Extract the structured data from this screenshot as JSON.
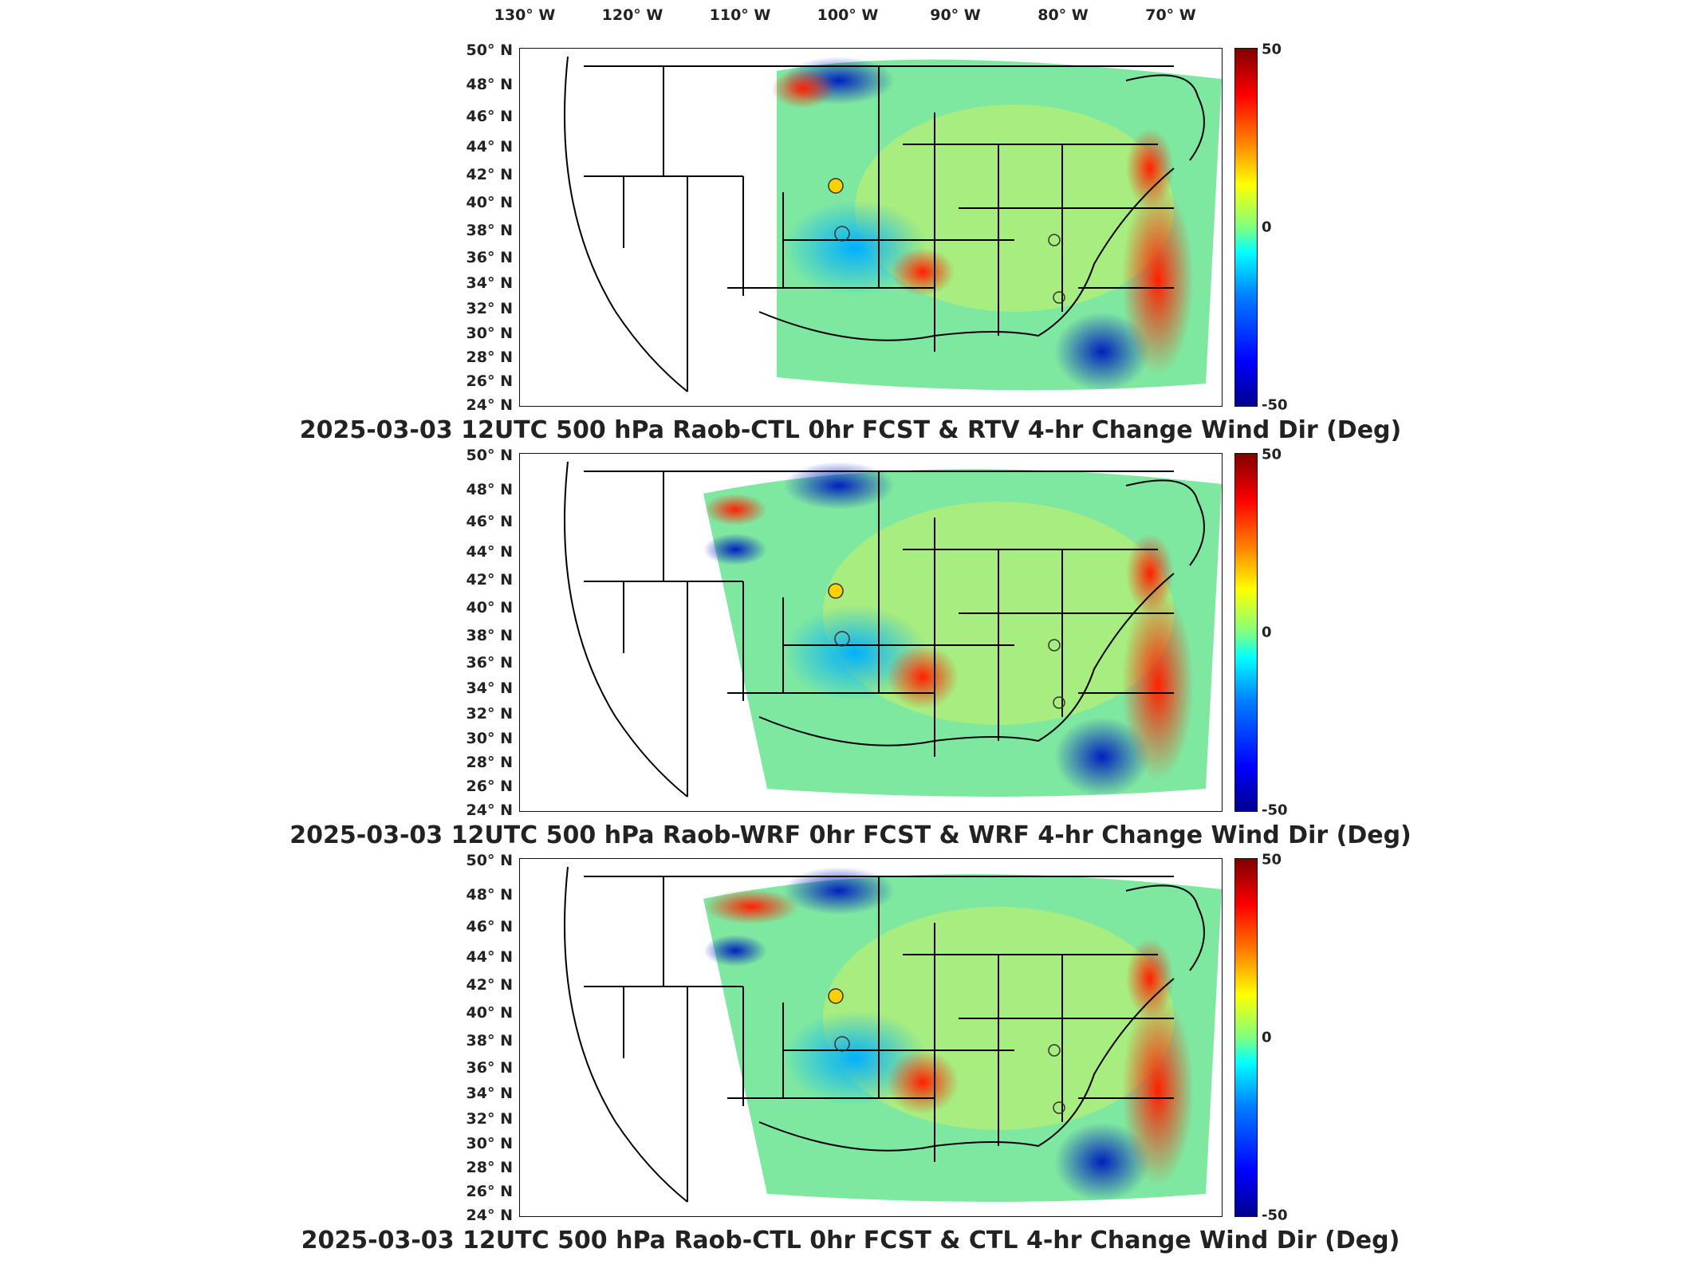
{
  "lon_labels": [
    "130° W",
    "120° W",
    "110° W",
    "100° W",
    "90° W",
    "80° W",
    "70° W"
  ],
  "lat_labels": [
    "50° N",
    "48° N",
    "46° N",
    "44° N",
    "42° N",
    "40° N",
    "38° N",
    "36° N",
    "34° N",
    "32° N",
    "30° N",
    "28° N",
    "26° N",
    "24° N"
  ],
  "colorbar": {
    "max_label": "50",
    "mid_label": "0",
    "min_label": "-50",
    "colors": [
      "#00008f",
      "#0000ff",
      "#0080ff",
      "#00ffff",
      "#80ff80",
      "#ffff00",
      "#ff8000",
      "#ff0000",
      "#800000"
    ]
  },
  "panels": [
    {
      "caption": "2025-03-03 12UTC 500 hPa Raob-CTL 0hr FCST & RTV 4-hr Change Wind Dir (Deg)"
    },
    {
      "caption": "2025-03-03 12UTC 500 hPa Raob-WRF 0hr FCST & WRF 4-hr Change Wind Dir (Deg)"
    },
    {
      "caption": "2025-03-03 12UTC 500 hPa Raob-CTL 0hr FCST & CTL 4-hr Change Wind Dir (Deg)"
    }
  ]
}
